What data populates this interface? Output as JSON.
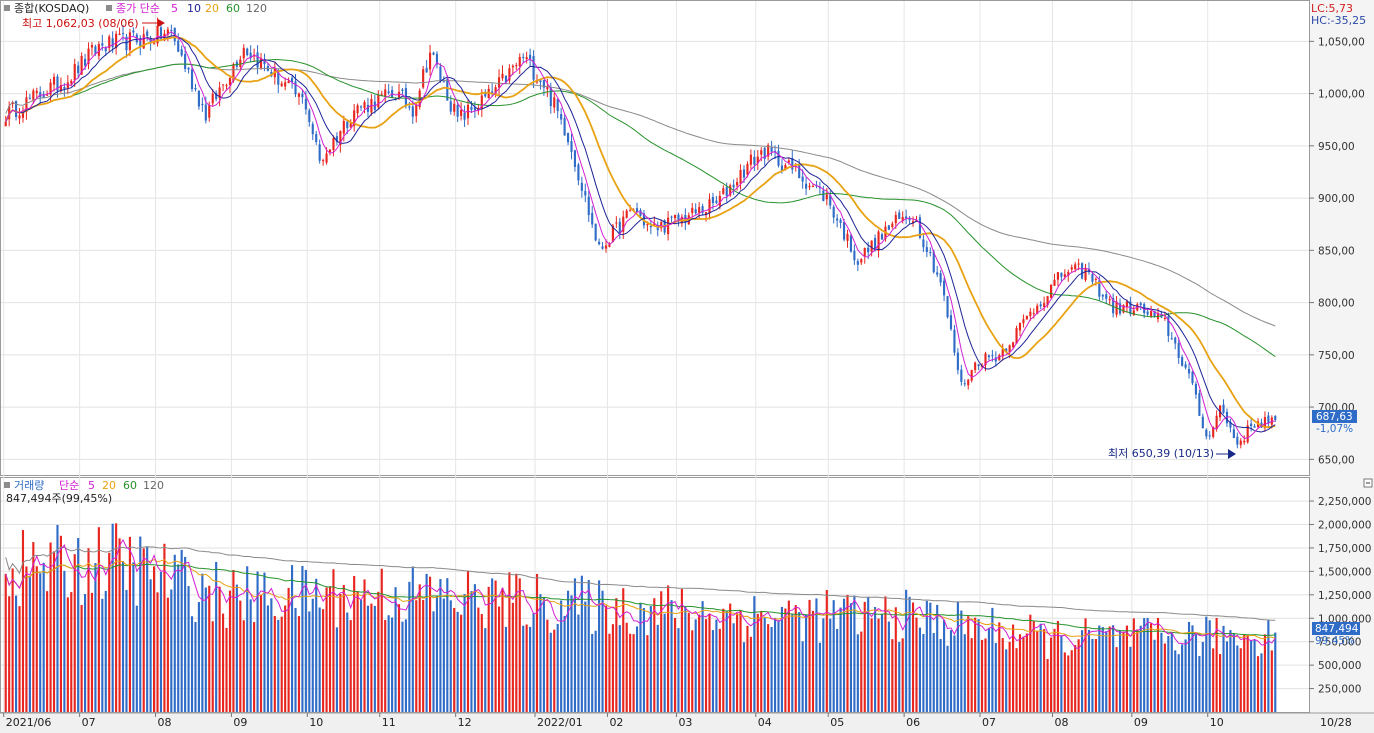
{
  "price_panel": {
    "legend": {
      "name": "종합(KOSDAQ)",
      "ma_prefix": "종가 단순",
      "periods": [
        "5",
        "10",
        "20",
        "60",
        "120"
      ]
    },
    "high_marker": "최고 1,062,03 (08/06)",
    "low_marker": "최저 650,39 (10/13)",
    "lc": "LC:5,73",
    "hc": "HC:-35,25",
    "last_price": "687,63",
    "last_change": "-1,07%"
  },
  "volume_panel": {
    "legend": {
      "name": "거래량",
      "ma_prefix": "단순",
      "periods": [
        "5",
        "20",
        "60",
        "120"
      ]
    },
    "info": "847,494주(99,45%)",
    "last_volume": "847,494",
    "last_pct": "99,45%"
  },
  "x_labels": [
    "2021/06",
    "07",
    "08",
    "09",
    "10",
    "11",
    "12",
    "2022/01",
    "02",
    "03",
    "04",
    "05",
    "06",
    "07",
    "08",
    "09",
    "10",
    "10/28"
  ],
  "colors": {
    "up": "#e8251e",
    "down": "#2f6cc7",
    "ma5": "#d21fd2",
    "ma10": "#1e2496",
    "ma20": "#e8a212",
    "ma60": "#27922c",
    "ma120": "#8a8a8a"
  },
  "chart_data": [
    {
      "type": "candlestick",
      "title": "종합(KOSDAQ)",
      "y_ticks": [
        "650,00",
        "700,00",
        "750,00",
        "800,00",
        "850,00",
        "900,00",
        "950,00",
        "1,000,00",
        "1,050,00"
      ],
      "ylim": [
        635,
        1080
      ],
      "grid": true,
      "series_close_anchors": [
        {
          "date": "2021-06-01",
          "value": 980
        },
        {
          "date": "2021-06-25",
          "value": 1015
        },
        {
          "date": "2021-07-08",
          "value": 1045
        },
        {
          "date": "2021-08-06",
          "value": 1058
        },
        {
          "date": "2021-08-20",
          "value": 980
        },
        {
          "date": "2021-09-06",
          "value": 1045
        },
        {
          "date": "2021-09-30",
          "value": 990
        },
        {
          "date": "2021-10-06",
          "value": 935
        },
        {
          "date": "2021-10-20",
          "value": 985
        },
        {
          "date": "2021-11-05",
          "value": 1000
        },
        {
          "date": "2021-11-12",
          "value": 985
        },
        {
          "date": "2021-11-19",
          "value": 1040
        },
        {
          "date": "2021-12-01",
          "value": 975
        },
        {
          "date": "2021-12-15",
          "value": 1000
        },
        {
          "date": "2021-12-28",
          "value": 1035
        },
        {
          "date": "2022-01-05",
          "value": 1010
        },
        {
          "date": "2022-01-14",
          "value": 960
        },
        {
          "date": "2022-01-27",
          "value": 850
        },
        {
          "date": "2022-02-10",
          "value": 890
        },
        {
          "date": "2022-02-17",
          "value": 870
        },
        {
          "date": "2022-03-02",
          "value": 880
        },
        {
          "date": "2022-03-16",
          "value": 895
        },
        {
          "date": "2022-03-30",
          "value": 935
        },
        {
          "date": "2022-04-05",
          "value": 945
        },
        {
          "date": "2022-04-18",
          "value": 925
        },
        {
          "date": "2022-04-29",
          "value": 900
        },
        {
          "date": "2022-05-12",
          "value": 840
        },
        {
          "date": "2022-05-26",
          "value": 875
        },
        {
          "date": "2022-06-03",
          "value": 885
        },
        {
          "date": "2022-06-15",
          "value": 820
        },
        {
          "date": "2022-06-23",
          "value": 720
        },
        {
          "date": "2022-06-30",
          "value": 745
        },
        {
          "date": "2022-07-08",
          "value": 750
        },
        {
          "date": "2022-07-21",
          "value": 790
        },
        {
          "date": "2022-08-04",
          "value": 830
        },
        {
          "date": "2022-08-12",
          "value": 830
        },
        {
          "date": "2022-08-24",
          "value": 795
        },
        {
          "date": "2022-09-02",
          "value": 795
        },
        {
          "date": "2022-09-14",
          "value": 780
        },
        {
          "date": "2022-09-23",
          "value": 730
        },
        {
          "date": "2022-09-30",
          "value": 670
        },
        {
          "date": "2022-10-06",
          "value": 700
        },
        {
          "date": "2022-10-13",
          "value": 665
        },
        {
          "date": "2022-10-20",
          "value": 685
        },
        {
          "date": "2022-10-28",
          "value": 687.63
        }
      ],
      "high": {
        "date": "2021-08-06",
        "value": 1062.03
      },
      "low": {
        "date": "2022-10-13",
        "value": 650.39
      }
    },
    {
      "type": "bar",
      "title": "거래량",
      "y_ticks": [
        "250,000",
        "500,000",
        "750,000",
        "1,000,000",
        "1,250,000",
        "1,500,000",
        "1,750,000",
        "2,000,000",
        "2,250,000"
      ],
      "ylim": [
        0,
        2400000
      ],
      "grid": true,
      "volume_level_anchors": [
        {
          "date": "2021-06-01",
          "value": 1550000
        },
        {
          "date": "2021-07-15",
          "value": 1650000
        },
        {
          "date": "2021-08-31",
          "value": 1250000
        },
        {
          "date": "2021-10-31",
          "value": 1300000
        },
        {
          "date": "2022-01-31",
          "value": 1150000
        },
        {
          "date": "2022-03-31",
          "value": 1050000
        },
        {
          "date": "2022-05-31",
          "value": 1050000
        },
        {
          "date": "2022-07-31",
          "value": 800000
        },
        {
          "date": "2022-09-30",
          "value": 820000
        },
        {
          "date": "2022-10-28",
          "value": 847494
        }
      ],
      "last": {
        "date": "2022-10-28",
        "value": 847494
      }
    }
  ]
}
